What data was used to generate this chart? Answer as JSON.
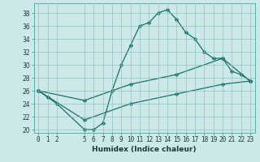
{
  "xlabel": "Humidex (Indice chaleur)",
  "bg_color": "#cde8e8",
  "grid_color": "#8bbfbf",
  "line_color": "#1a6e6a",
  "xlim": [
    -0.5,
    23.5
  ],
  "ylim": [
    19.5,
    39.5
  ],
  "xticks": [
    0,
    1,
    2,
    5,
    6,
    7,
    8,
    9,
    10,
    11,
    12,
    13,
    14,
    15,
    16,
    17,
    18,
    19,
    20,
    21,
    22,
    23
  ],
  "yticks": [
    20,
    22,
    24,
    26,
    28,
    30,
    32,
    34,
    36,
    38
  ],
  "line1_x": [
    0,
    1,
    2,
    5,
    6,
    7,
    8,
    9,
    10,
    11,
    12,
    13,
    14,
    15,
    16,
    17,
    18,
    19,
    20,
    21,
    22,
    23
  ],
  "line1_y": [
    26,
    25,
    24,
    20,
    20,
    21,
    26,
    30,
    33,
    36,
    36.5,
    38,
    38.5,
    37,
    35,
    34,
    32,
    31,
    31,
    29,
    28.5,
    27.5
  ],
  "line2_x": [
    0,
    5,
    10,
    15,
    20,
    23
  ],
  "line2_y": [
    26,
    24.5,
    27,
    28.5,
    31,
    27.5
  ],
  "line3_x": [
    0,
    5,
    10,
    15,
    20,
    23
  ],
  "line3_y": [
    26,
    21.5,
    24,
    25.5,
    27,
    27.5
  ],
  "markersize": 2.5,
  "tick_fontsize": 5.5,
  "xlabel_fontsize": 6.5
}
